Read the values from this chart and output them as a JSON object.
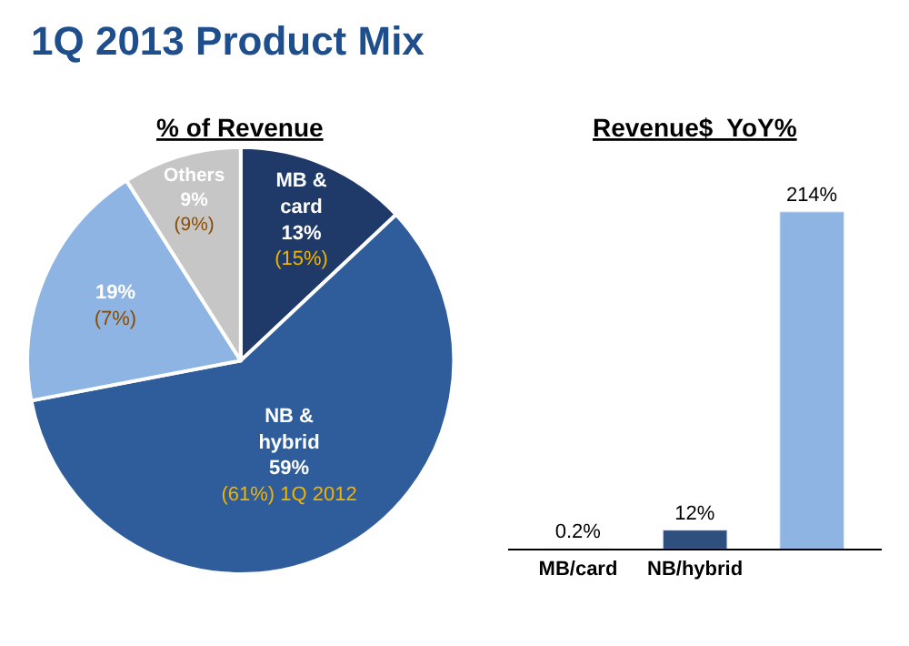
{
  "chart_data": [
    {
      "type": "pie",
      "title": "1Q 2013 Product Mix",
      "subtitle": "% of Revenue",
      "categories": [
        "MB &\ncard",
        "NB &\nhybrid",
        null,
        "Others"
      ],
      "values": [
        13,
        59,
        19,
        9
      ],
      "value_labels": [
        "13%\n(15%)",
        "59%\n(61%) 1Q 2012",
        "19%\n(7%)",
        "9%\n(9%)"
      ],
      "colors": [
        "#1f3a68",
        "#2f5d9b",
        "#8db4e2",
        "#c6c6c6"
      ]
    },
    {
      "type": "bar",
      "title": "Revenue$  YoY%",
      "categories": [
        "MB/card",
        "NB/hybrid",
        null
      ],
      "values": [
        0.2,
        12,
        214
      ],
      "value_labels": [
        "0.2%",
        "12%",
        "214%"
      ],
      "colors": [
        "#2f4f7f",
        "#2f4f7f",
        "#8db4e2"
      ]
    }
  ]
}
